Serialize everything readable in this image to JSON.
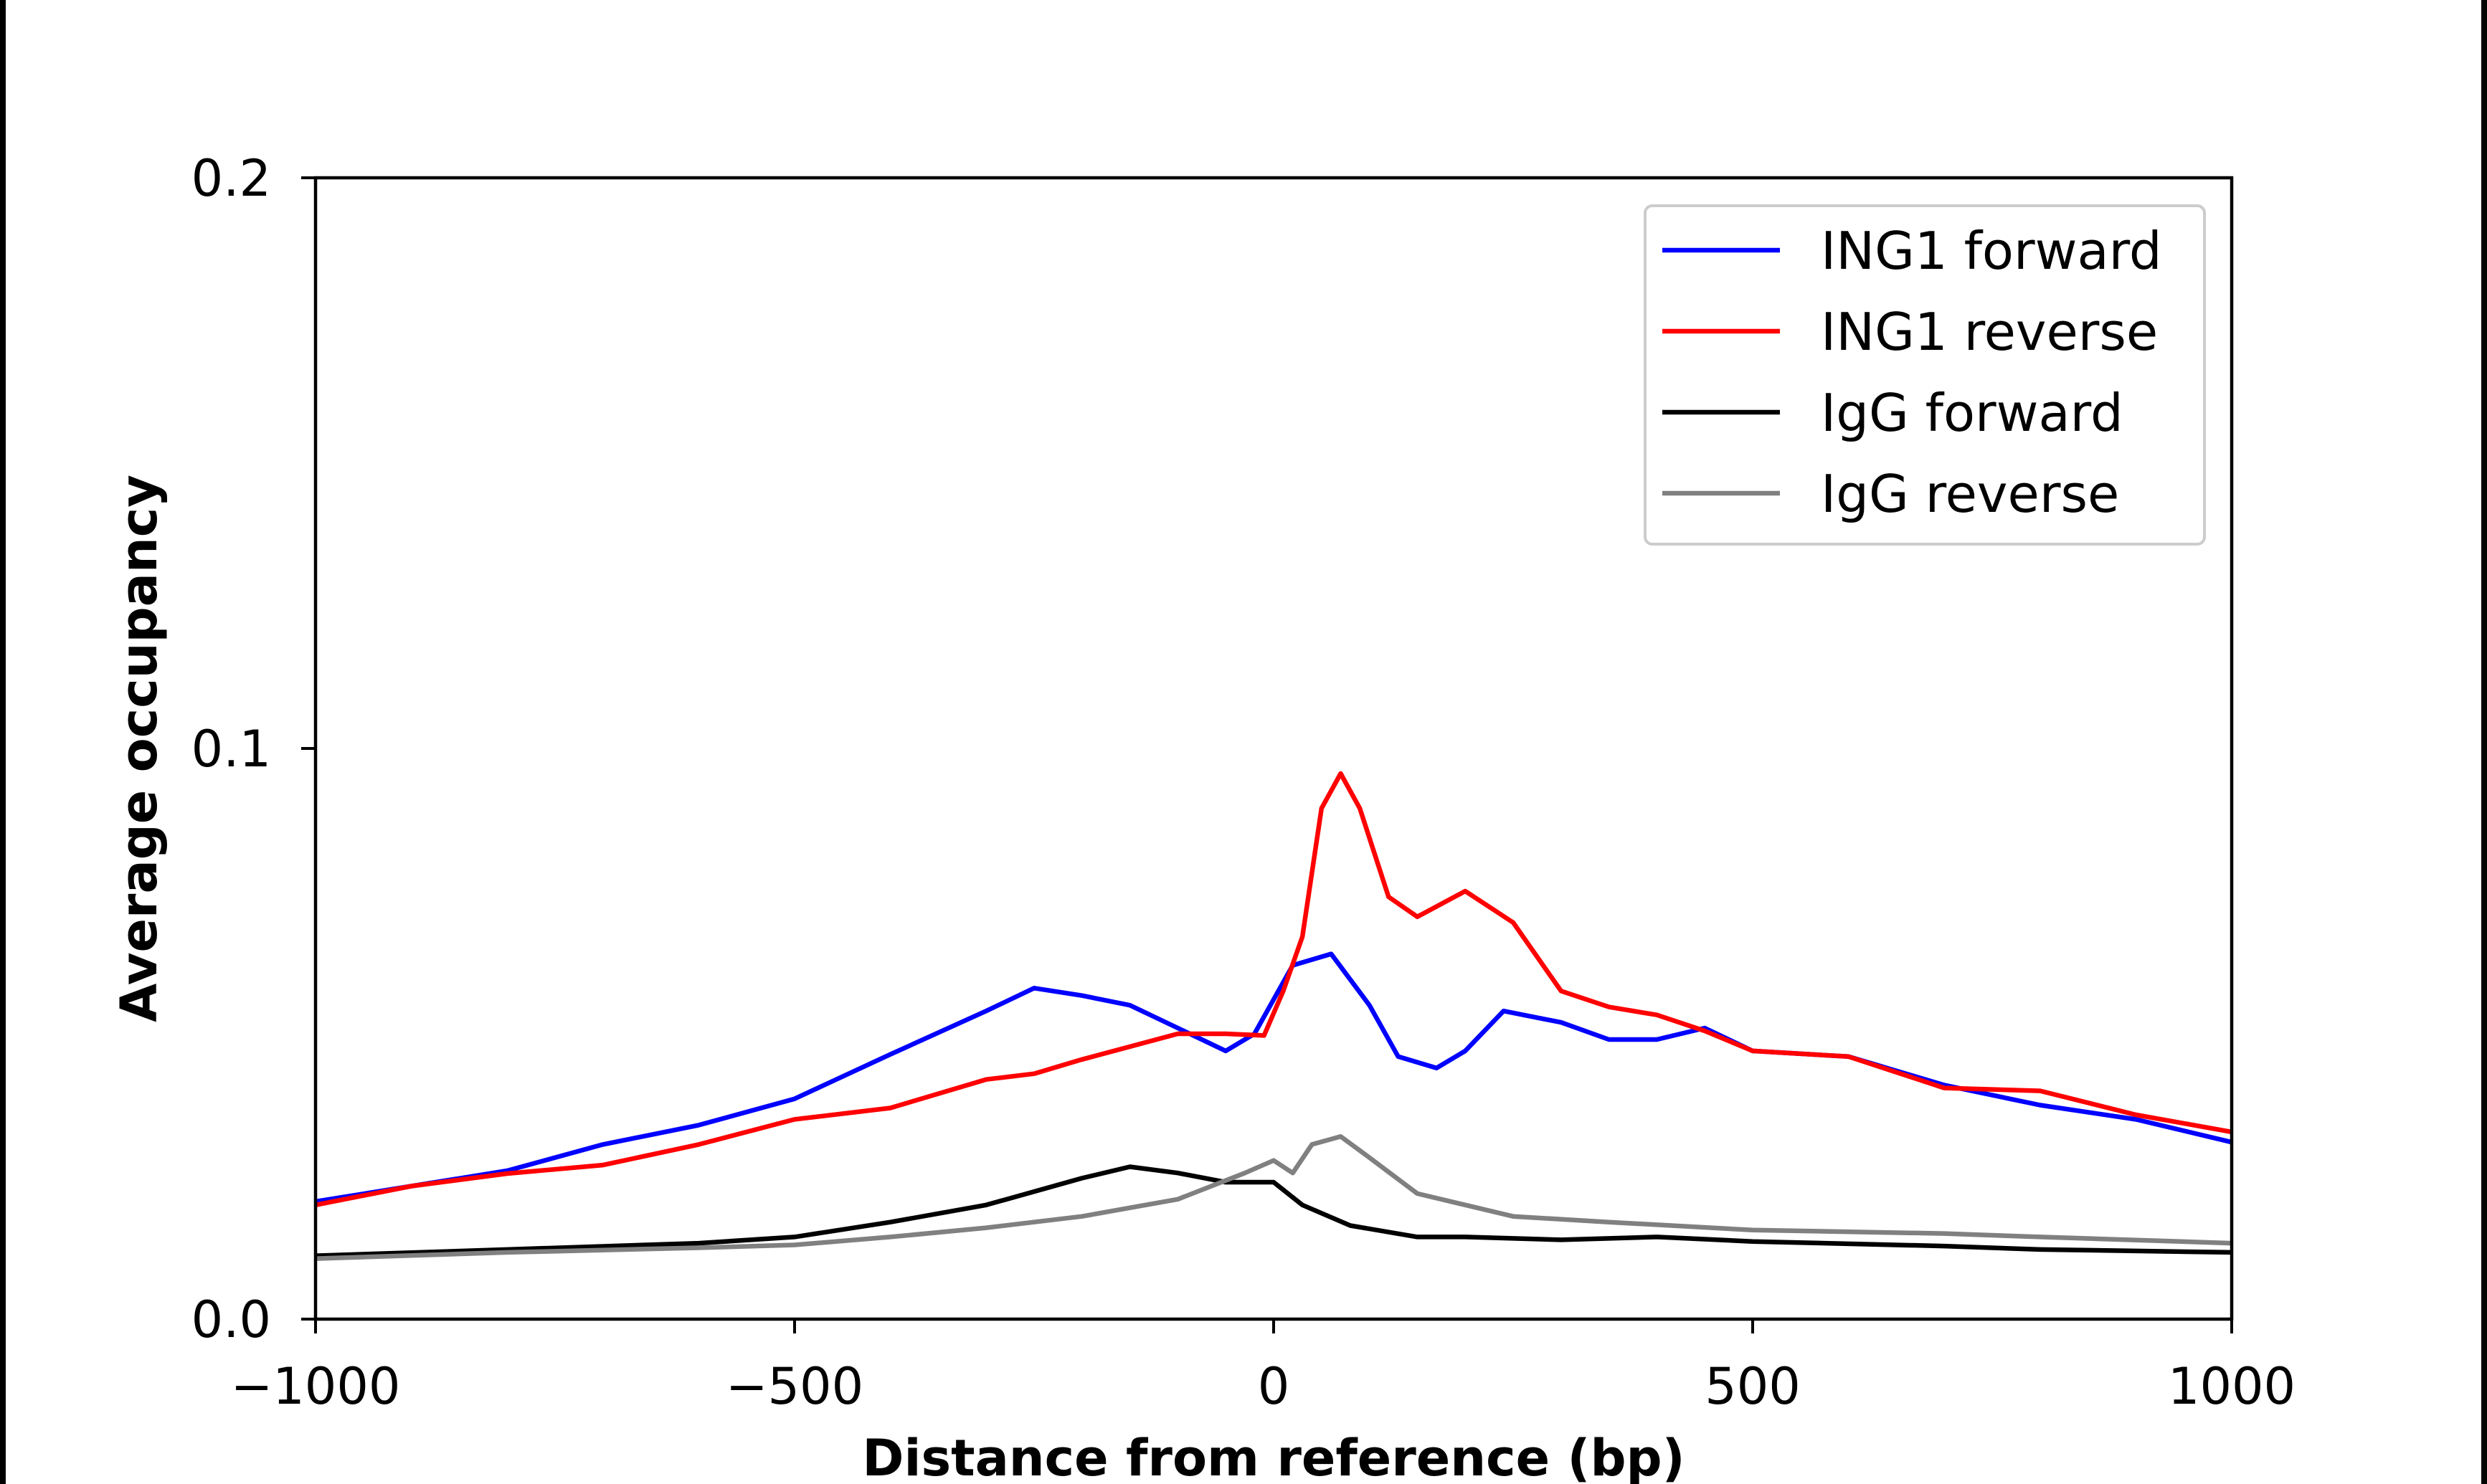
{
  "chart_data": {
    "type": "line",
    "title": "",
    "xlabel": "Distance from reference (bp)",
    "ylabel": "Average occupancy",
    "xlim": [
      -1000,
      1000
    ],
    "ylim": [
      0,
      0.2
    ],
    "xticks": [
      -1000,
      -500,
      0,
      500,
      1000
    ],
    "xtick_labels": [
      "−1000",
      "−500",
      "0",
      "500",
      "1000"
    ],
    "yticks": [
      0,
      0.1,
      0.2
    ],
    "ytick_labels": [
      "0.0",
      "0.1",
      "0.2"
    ],
    "grid": false,
    "legend_position": "top-right",
    "series": [
      {
        "name": "ING1 forward",
        "color": "#0000ff",
        "x": [
          -1000,
          -900,
          -800,
          -700,
          -600,
          -500,
          -400,
          -300,
          -250,
          -200,
          -150,
          -100,
          -50,
          -20,
          0,
          20,
          60,
          100,
          130,
          170,
          200,
          240,
          300,
          350,
          400,
          450,
          500,
          600,
          700,
          800,
          900,
          1000
        ],
        "y": [
          0.0206,
          0.0233,
          0.026,
          0.0306,
          0.034,
          0.0386,
          0.0464,
          0.054,
          0.058,
          0.0567,
          0.055,
          0.051,
          0.047,
          0.05,
          0.056,
          0.062,
          0.064,
          0.055,
          0.046,
          0.044,
          0.047,
          0.054,
          0.052,
          0.049,
          0.049,
          0.051,
          0.047,
          0.046,
          0.041,
          0.0375,
          0.035,
          0.031
        ]
      },
      {
        "name": "ING1 reverse",
        "color": "#ff0000",
        "x": [
          -1000,
          -900,
          -800,
          -700,
          -600,
          -500,
          -400,
          -300,
          -250,
          -200,
          -100,
          -50,
          -10,
          10,
          30,
          50,
          70,
          90,
          120,
          150,
          200,
          250,
          300,
          350,
          400,
          450,
          500,
          600,
          700,
          800,
          900,
          1000
        ],
        "y": [
          0.02,
          0.0233,
          0.0255,
          0.027,
          0.0306,
          0.035,
          0.037,
          0.042,
          0.043,
          0.0455,
          0.05,
          0.05,
          0.0497,
          0.0575,
          0.067,
          0.0895,
          0.0956,
          0.0895,
          0.074,
          0.0705,
          0.075,
          0.0695,
          0.0575,
          0.0547,
          0.0533,
          0.0505,
          0.047,
          0.046,
          0.0405,
          0.04,
          0.0358,
          0.0328
        ]
      },
      {
        "name": "IgG forward",
        "color": "#000000",
        "x": [
          -1000,
          -800,
          -600,
          -500,
          -400,
          -300,
          -200,
          -150,
          -100,
          -50,
          0,
          30,
          80,
          150,
          200,
          300,
          400,
          500,
          700,
          800,
          1000
        ],
        "y": [
          0.0111,
          0.0122,
          0.0133,
          0.0144,
          0.017,
          0.02,
          0.0247,
          0.0267,
          0.0256,
          0.024,
          0.024,
          0.02,
          0.0164,
          0.0144,
          0.0144,
          0.0139,
          0.0144,
          0.0136,
          0.0128,
          0.0122,
          0.0117
        ]
      },
      {
        "name": "IgG reverse",
        "color": "#808080",
        "x": [
          -1000,
          -800,
          -600,
          -500,
          -400,
          -300,
          -200,
          -100,
          -30,
          0,
          20,
          40,
          70,
          100,
          150,
          250,
          350,
          500,
          700,
          800,
          1000
        ],
        "y": [
          0.0106,
          0.0117,
          0.0125,
          0.013,
          0.0144,
          0.016,
          0.018,
          0.021,
          0.0256,
          0.0278,
          0.0256,
          0.0306,
          0.032,
          0.0283,
          0.022,
          0.018,
          0.017,
          0.0156,
          0.015,
          0.0144,
          0.0133
        ]
      }
    ]
  }
}
